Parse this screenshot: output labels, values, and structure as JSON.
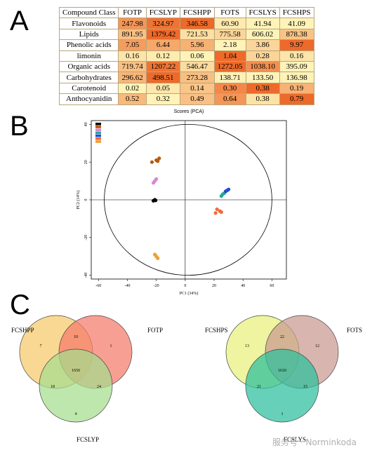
{
  "panel_labels": [
    "A",
    "B",
    "C"
  ],
  "watermark": "服务号 · Norminkoda",
  "colors": {
    "heat_low": "#fff3b8",
    "heat_high": "#ee6a2a",
    "samples": {
      "FOTP": "#000000",
      "FCSLYP": "#b85a0c",
      "FCSHPP": "#d987d4",
      "FOTS": "#23a89a",
      "FCSLYS": "#1f4fd1",
      "FCSHPS": "#f26a3d",
      "FOTS_alt": "#f0a030"
    },
    "venn1": [
      "#f7c96b",
      "#f57a6a",
      "#a5de8e"
    ],
    "venn2": [
      "#e8f07a",
      "#c99a90",
      "#2bbf9c"
    ]
  },
  "chart_data": [
    {
      "type": "table",
      "columns": [
        "Compound Class",
        "FOTP",
        "FCSLYP",
        "FCSHPP",
        "FOTS",
        "FCSLYS",
        "FCSHPS"
      ],
      "rows": [
        {
          "label": "Flavonoids",
          "values": [
            "247.98",
            "324.97",
            "346.58",
            "60.90",
            "41.94",
            "41.09"
          ]
        },
        {
          "label": "Lipids",
          "values": [
            "891.95",
            "1379.42",
            "721.53",
            "775.58",
            "606.02",
            "878.38"
          ]
        },
        {
          "label": "Phenolic acids",
          "values": [
            "7.05",
            "6.44",
            "5.96",
            "2.18",
            "3.86",
            "9.97"
          ]
        },
        {
          "label": "limonin",
          "values": [
            "0.16",
            "0.12",
            "0.06",
            "1.04",
            "0.28",
            "0.16"
          ]
        },
        {
          "label": "Organic acids",
          "values": [
            "719.74",
            "1207.22",
            "546.47",
            "1272.05",
            "1038.10",
            "395.09"
          ]
        },
        {
          "label": "Carbohydrates",
          "values": [
            "296.62",
            "498.51",
            "273.28",
            "138.71",
            "133.50",
            "136.98"
          ]
        },
        {
          "label": "Carotenoid",
          "values": [
            "0.02",
            "0.05",
            "0.14",
            "0.30",
            "0.38",
            "0.19"
          ]
        },
        {
          "label": "Anthocyanidin",
          "values": [
            "0.52",
            "0.32",
            "0.49",
            "0.64",
            "0.38",
            "0.79"
          ]
        }
      ]
    },
    {
      "type": "scatter",
      "title": "Scores (PCA)",
      "xlabel": "PC1 (34%)",
      "ylabel": "PC2 (14%)",
      "xlim": [
        -65,
        70
      ],
      "ylim": [
        -42,
        42
      ],
      "xticks": [
        "-60",
        "-40",
        "-20",
        "0",
        "20",
        "40",
        "60"
      ],
      "yticks": [
        "40",
        "20",
        "0",
        "-20",
        "-40"
      ],
      "series": [
        {
          "color_key": "FOTP",
          "x": [
            -22,
            -21,
            -20.5
          ],
          "y": [
            -0.5,
            0,
            -0.3
          ]
        },
        {
          "color_key": "FCSLYP",
          "x": [
            -23,
            -20,
            -18,
            -19
          ],
          "y": [
            20,
            21,
            22,
            20.5
          ]
        },
        {
          "color_key": "FCSHPP",
          "x": [
            -22,
            -21,
            -20
          ],
          "y": [
            9,
            10,
            11
          ]
        },
        {
          "color_key": "FOTS",
          "x": [
            25,
            26,
            27
          ],
          "y": [
            2,
            3,
            3.5
          ]
        },
        {
          "color_key": "FCSLYS",
          "x": [
            28,
            29,
            30
          ],
          "y": [
            4.5,
            5,
            5.5
          ]
        },
        {
          "color_key": "FCSHPS",
          "x": [
            21,
            24,
            25,
            22
          ],
          "y": [
            -7,
            -6,
            -6.5,
            -5
          ]
        },
        {
          "color_key": "FOTS_alt",
          "x": [
            -21,
            -19,
            -20
          ],
          "y": [
            -29,
            -31,
            -30
          ]
        }
      ]
    },
    {
      "type": "venn",
      "sets": [
        "FCSHPP",
        "FOTP",
        "FCSLYP"
      ],
      "regions": {
        "a_only": "7",
        "b_only": "1",
        "c_only": "4",
        "ab": "10",
        "ac": "18",
        "bc": "24",
        "abc": "1650"
      }
    },
    {
      "type": "venn",
      "sets": [
        "FCSHPS",
        "FOTS",
        "FCSLYS"
      ],
      "regions": {
        "a_only": "13",
        "b_only": "12",
        "c_only": "1",
        "ab": "22",
        "ac": "21",
        "bc": "15",
        "abc": "1610"
      }
    }
  ]
}
